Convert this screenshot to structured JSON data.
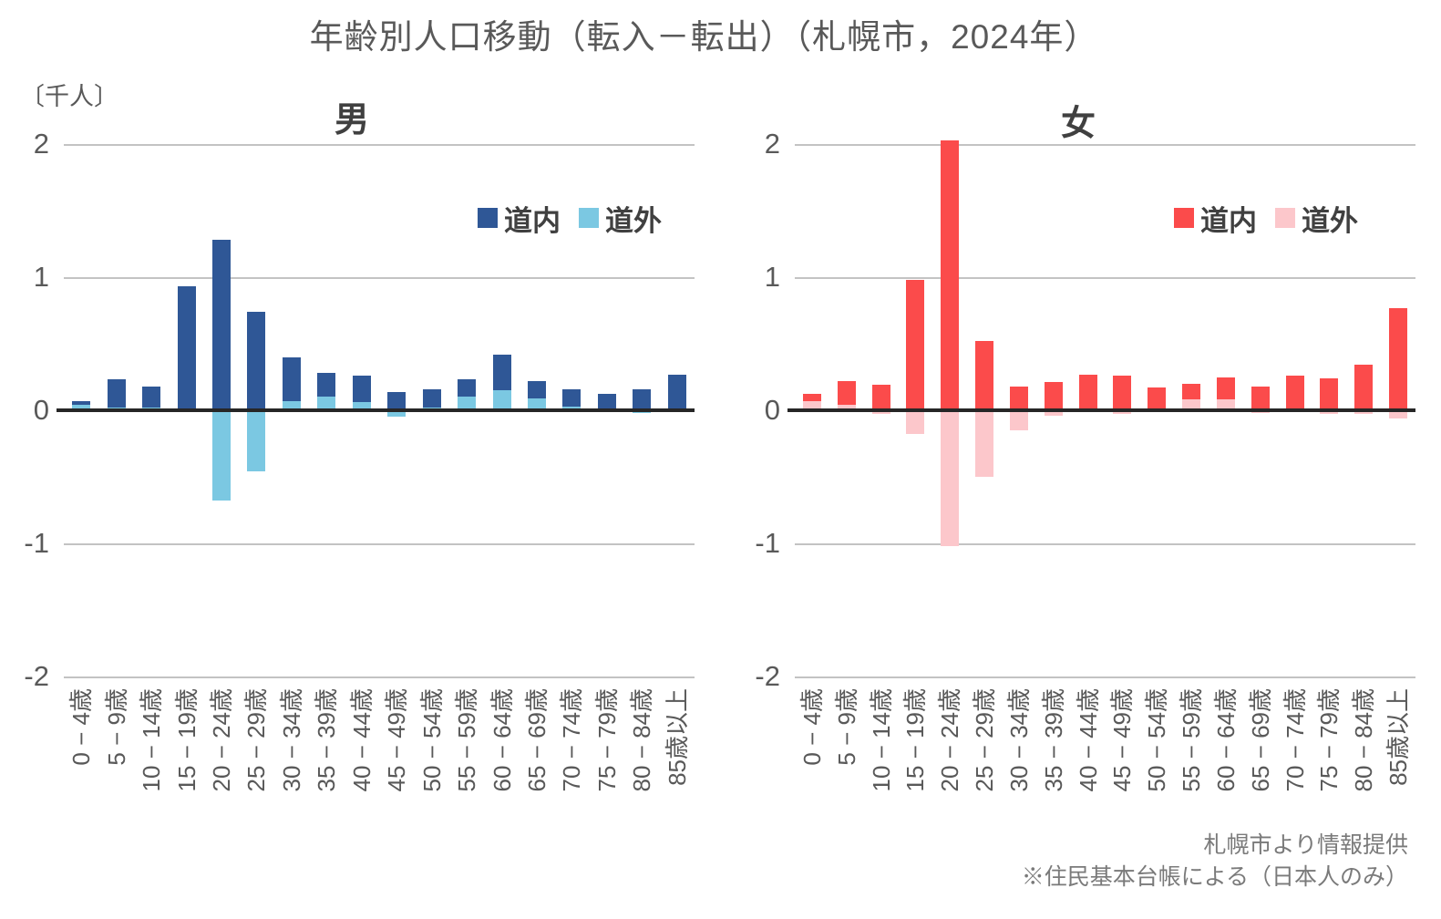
{
  "page": {
    "title": "年齢別人口移動（転入－転出）（札幌市，2024年）",
    "unit_label": "〔千人〕",
    "footer_line1": "札幌市より情報提供",
    "footer_line2": "※住民基本台帳による（日本人のみ）"
  },
  "colors": {
    "male_within": "#2f5796",
    "male_outside": "#7bc8e2",
    "female_within": "#fb4b4b",
    "female_outside": "#fcc7cb",
    "grid": "#c3c3c3",
    "axis": "#262626",
    "text_dark": "#404040",
    "text_gray": "#595959",
    "footer_gray": "#7a7a7a"
  },
  "chart_data": [
    {
      "type": "bar",
      "title": "男",
      "unit": "千人",
      "bar_mode": "overlapped",
      "grid": true,
      "legend_position": "upper right",
      "ylim": [
        -2,
        2
      ],
      "yticks": [
        2,
        1,
        0,
        -1,
        -2
      ],
      "categories": [
        "0 − 4歳",
        "5 − 9歳",
        "10 − 14歳",
        "15 − 19歳",
        "20 − 24歳",
        "25 − 29歳",
        "30 − 34歳",
        "35 − 39歳",
        "40 − 44歳",
        "45 − 49歳",
        "50 − 54歳",
        "55 − 59歳",
        "60 − 64歳",
        "65 − 69歳",
        "70 − 74歳",
        "75 − 79歳",
        "80 − 84歳",
        "85歳以上"
      ],
      "series": [
        {
          "name": "道内",
          "color": "#2f5796",
          "values": [
            0.07,
            0.23,
            0.18,
            0.93,
            1.28,
            0.74,
            0.4,
            0.28,
            0.26,
            0.14,
            0.16,
            0.23,
            0.42,
            0.22,
            0.16,
            0.12,
            0.16,
            0.27
          ]
        },
        {
          "name": "道外",
          "color": "#7bc8e2",
          "values": [
            0.04,
            0.02,
            0.02,
            0.0,
            -0.68,
            -0.46,
            0.07,
            0.1,
            0.06,
            -0.05,
            0.02,
            0.1,
            0.15,
            0.09,
            0.03,
            0.0,
            -0.02,
            0.0
          ]
        }
      ]
    },
    {
      "type": "bar",
      "title": "女",
      "unit": "千人",
      "bar_mode": "overlapped",
      "grid": true,
      "legend_position": "upper right",
      "ylim": [
        -2,
        2
      ],
      "yticks": [
        2,
        1,
        0,
        -1,
        -2
      ],
      "categories": [
        "0 − 4歳",
        "5 − 9歳",
        "10 − 14歳",
        "15 − 19歳",
        "20 − 24歳",
        "25 − 29歳",
        "30 − 34歳",
        "35 − 39歳",
        "40 − 44歳",
        "45 − 49歳",
        "50 − 54歳",
        "55 − 59歳",
        "60 − 64歳",
        "65 − 69歳",
        "70 − 74歳",
        "75 − 79歳",
        "80 − 84歳",
        "85歳以上"
      ],
      "series": [
        {
          "name": "道内",
          "color": "#fb4b4b",
          "values": [
            0.12,
            0.22,
            0.19,
            0.98,
            2.03,
            0.52,
            0.18,
            0.21,
            0.27,
            0.26,
            0.17,
            0.2,
            0.25,
            0.18,
            0.26,
            0.24,
            0.34,
            0.77
          ]
        },
        {
          "name": "道外",
          "color": "#fcc7cb",
          "values": [
            0.07,
            0.04,
            -0.03,
            -0.18,
            -1.02,
            -0.5,
            -0.15,
            -0.04,
            -0.01,
            -0.03,
            0.0,
            0.08,
            0.08,
            -0.02,
            0.0,
            -0.03,
            -0.03,
            -0.06
          ]
        }
      ]
    }
  ]
}
